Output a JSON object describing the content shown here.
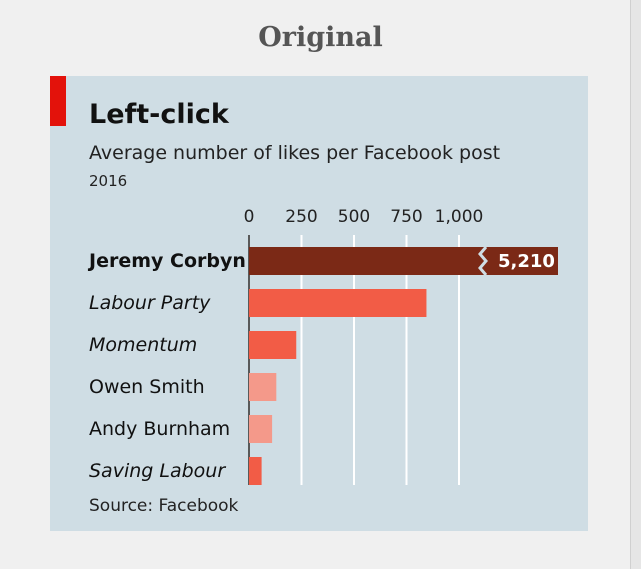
{
  "header": {
    "label": "Original"
  },
  "chart_data": {
    "type": "bar",
    "orientation": "horizontal",
    "title": "Left-click",
    "subtitle": "Average number of likes per Facebook post",
    "year": "2016",
    "source": "Source: Facebook",
    "categories": [
      "Jeremy Corbyn",
      "Labour Party",
      "Momentum",
      "Owen Smith",
      "Andy Burnham",
      "Saving Labour"
    ],
    "label_styles": [
      "bold",
      "italic",
      "italic",
      "normal",
      "normal",
      "italic"
    ],
    "values": [
      5210,
      845,
      225,
      130,
      110,
      60
    ],
    "bar_colors": [
      "#7b2916",
      "#f25c46",
      "#f25c46",
      "#f4998a",
      "#f4998a",
      "#f25c46"
    ],
    "value_labels": [
      "5,210",
      "",
      "",
      "",
      "",
      ""
    ],
    "axis_break": {
      "category": "Jeremy Corbyn",
      "label": "5,210"
    },
    "xticks": [
      "0",
      "250",
      "500",
      "750",
      "1,000"
    ],
    "xtick_values": [
      0,
      250,
      500,
      750,
      1000
    ],
    "xlim": [
      0,
      1000
    ],
    "grid": true,
    "gridline_color": "#ffffff"
  }
}
